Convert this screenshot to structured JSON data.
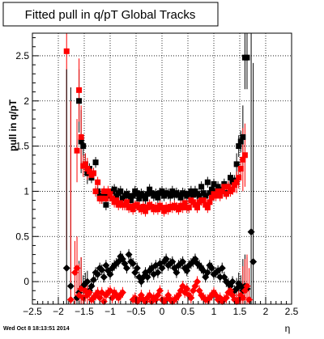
{
  "chart_data": {
    "type": "scatter",
    "title": "Fitted pull in q/pT  Global Tracks",
    "xlabel": "η",
    "ylabel": "pull in q/pT",
    "xlim": [
      -2.5,
      2.5
    ],
    "ylim": [
      -0.25,
      2.75
    ],
    "x_ticks": [
      -2.5,
      -2,
      -1.5,
      -1,
      -0.5,
      0,
      0.5,
      1,
      1.5,
      2,
      2.5
    ],
    "x_tick_labels": [
      "−2.5",
      "−2",
      "−1.5",
      "−1",
      "−0.5",
      "0",
      "0.5",
      "1",
      "1.5",
      "2",
      "2.5"
    ],
    "y_ticks": [
      0,
      0.5,
      1,
      1.5,
      2,
      2.5
    ],
    "y_tick_labels": [
      "0",
      "0.5",
      "1",
      "1.5",
      "2",
      "2.5"
    ],
    "grid": true,
    "timestamp": "Wed Oct  8 18:13:51 2014",
    "colors": {
      "black": "#000000",
      "red": "#ff0000"
    },
    "series": [
      {
        "marker": "square",
        "color": "#000000",
        "x": [
          -1.6,
          -1.56,
          -1.52,
          -1.48,
          -1.44,
          -1.4,
          -1.36,
          -1.32,
          -1.28,
          -1.24,
          -1.2,
          -1.16,
          -1.12,
          -1.08,
          -1.04,
          -1.0,
          -0.96,
          -0.92,
          -0.88,
          -0.84,
          -0.8,
          -0.76,
          -0.72,
          -0.68,
          -0.64,
          -0.6,
          -0.56,
          -0.52,
          -0.48,
          -0.44,
          -0.4,
          -0.36,
          -0.32,
          -0.28,
          -0.24,
          -0.2,
          -0.16,
          -0.12,
          -0.08,
          -0.04,
          0.0,
          0.04,
          0.08,
          0.12,
          0.16,
          0.2,
          0.24,
          0.28,
          0.32,
          0.36,
          0.4,
          0.44,
          0.48,
          0.52,
          0.56,
          0.6,
          0.64,
          0.68,
          0.72,
          0.76,
          0.8,
          0.84,
          0.88,
          0.92,
          0.96,
          1.0,
          1.04,
          1.08,
          1.12,
          1.16,
          1.2,
          1.24,
          1.28,
          1.32,
          1.36,
          1.4,
          1.44,
          1.48,
          1.52,
          1.56,
          1.6,
          1.64
        ],
        "y": [
          2.0,
          1.55,
          1.5,
          1.3,
          1.2,
          1.25,
          1.15,
          1.2,
          1.32,
          1.0,
          0.95,
          0.92,
          0.98,
          0.85,
          0.95,
          0.97,
          1.0,
          1.02,
          0.95,
          0.98,
          1.0,
          0.92,
          0.95,
          0.97,
          0.95,
          0.9,
          0.95,
          1.0,
          0.98,
          0.92,
          0.97,
          0.95,
          0.92,
          0.97,
          1.02,
          0.98,
          0.95,
          0.97,
          0.93,
          0.98,
          1.0,
          0.95,
          0.98,
          0.97,
          0.95,
          1.0,
          0.96,
          0.98,
          0.96,
          0.93,
          0.98,
          0.97,
          0.95,
          0.97,
          1.0,
          0.96,
          1.0,
          0.97,
          0.95,
          1.05,
          0.98,
          0.95,
          1.1,
          0.98,
          1.02,
          1.08,
          1.0,
          1.05,
          1.02,
          1.0,
          1.08,
          0.98,
          1.05,
          1.15,
          1.1,
          1.12,
          1.3,
          1.5,
          1.55,
          1.6,
          2.48,
          2.48
        ]
      },
      {
        "marker": "square",
        "color": "#ff0000",
        "x": [
          -1.84,
          -1.64,
          -1.6,
          -1.56,
          -1.52,
          -1.48,
          -1.44,
          -1.4,
          -1.36,
          -1.32,
          -1.28,
          -1.24,
          -1.2,
          -1.16,
          -1.12,
          -1.08,
          -1.04,
          -1.0,
          -0.96,
          -0.92,
          -0.88,
          -0.84,
          -0.8,
          -0.76,
          -0.72,
          -0.68,
          -0.64,
          -0.6,
          -0.56,
          -0.52,
          -0.48,
          -0.44,
          -0.4,
          -0.36,
          -0.32,
          -0.28,
          -0.24,
          -0.2,
          -0.16,
          -0.12,
          -0.08,
          -0.04,
          0.0,
          0.04,
          0.08,
          0.12,
          0.16,
          0.2,
          0.24,
          0.28,
          0.32,
          0.36,
          0.4,
          0.44,
          0.48,
          0.52,
          0.56,
          0.6,
          0.64,
          0.68,
          0.72,
          0.76,
          0.8,
          0.84,
          0.88,
          0.92,
          0.96,
          1.0,
          1.04,
          1.08,
          1.12,
          1.16,
          1.2,
          1.24,
          1.28,
          1.32,
          1.36,
          1.4,
          1.44,
          1.48,
          1.52,
          1.56,
          1.6
        ],
        "y": [
          2.55,
          1.45,
          2.12,
          1.6,
          1.28,
          1.3,
          1.25,
          1.22,
          1.18,
          1.2,
          1.0,
          1.1,
          0.92,
          0.92,
          1.0,
          0.92,
          1.0,
          0.97,
          0.92,
          0.88,
          0.9,
          0.85,
          0.87,
          0.85,
          0.85,
          0.88,
          0.82,
          0.83,
          0.8,
          0.84,
          0.85,
          0.82,
          0.8,
          0.83,
          0.78,
          0.82,
          0.85,
          0.83,
          0.8,
          0.82,
          0.8,
          0.84,
          0.82,
          0.78,
          0.82,
          0.8,
          0.83,
          0.82,
          0.84,
          0.82,
          0.8,
          0.84,
          0.82,
          0.87,
          0.82,
          0.82,
          0.9,
          0.88,
          0.85,
          0.82,
          0.88,
          0.9,
          0.9,
          0.85,
          0.82,
          0.88,
          0.93,
          0.97,
          0.95,
          1.0,
          0.95,
          1.0,
          1.05,
          0.97,
          1.05,
          1.0,
          1.02,
          1.07,
          1.1,
          1.15,
          1.25,
          1.35,
          1.4
        ]
      },
      {
        "marker": "diamond",
        "color": "#000000",
        "x": [
          -1.84,
          -1.76,
          -1.64,
          -1.6,
          -1.56,
          -1.52,
          -1.48,
          -1.44,
          -1.4,
          -1.36,
          -1.32,
          -1.28,
          -1.24,
          -1.2,
          -1.16,
          -1.12,
          -1.08,
          -1.04,
          -1.0,
          -0.96,
          -0.92,
          -0.88,
          -0.84,
          -0.8,
          -0.76,
          -0.72,
          -0.68,
          -0.64,
          -0.6,
          -0.56,
          -0.52,
          -0.48,
          -0.44,
          -0.4,
          -0.36,
          -0.32,
          -0.28,
          -0.24,
          -0.2,
          -0.16,
          -0.12,
          -0.08,
          -0.04,
          0.0,
          0.04,
          0.08,
          0.12,
          0.16,
          0.2,
          0.24,
          0.28,
          0.32,
          0.36,
          0.4,
          0.44,
          0.48,
          0.52,
          0.56,
          0.6,
          0.64,
          0.68,
          0.72,
          0.76,
          0.8,
          0.84,
          0.88,
          0.92,
          0.96,
          1.0,
          1.04,
          1.08,
          1.12,
          1.16,
          1.2,
          1.24,
          1.28,
          1.32,
          1.36,
          1.4,
          1.44,
          1.48,
          1.52,
          1.56,
          1.6,
          1.64,
          1.72,
          1.76
        ],
        "y": [
          0.15,
          -0.05,
          -0.18,
          -0.12,
          -0.08,
          -0.05,
          -0.02,
          0.0,
          -0.1,
          -0.05,
          0.02,
          0.1,
          0.08,
          0.15,
          0.13,
          0.05,
          0.18,
          0.12,
          0.08,
          0.15,
          0.18,
          0.2,
          0.22,
          0.28,
          0.25,
          0.2,
          0.15,
          0.3,
          0.22,
          0.2,
          0.1,
          0.15,
          0.05,
          0.0,
          0.05,
          0.1,
          0.05,
          0.12,
          0.15,
          0.08,
          0.18,
          0.1,
          0.2,
          0.15,
          0.22,
          0.25,
          0.18,
          0.2,
          0.22,
          0.15,
          0.1,
          0.18,
          0.2,
          0.22,
          0.15,
          0.12,
          0.18,
          0.2,
          0.22,
          0.25,
          0.2,
          0.18,
          0.15,
          0.12,
          0.05,
          0.1,
          0.18,
          0.15,
          0.08,
          0.1,
          0.12,
          0.05,
          0.15,
          0.05,
          0.0,
          -0.02,
          -0.05,
          0.0,
          -0.1,
          -0.08,
          -0.02,
          -0.05,
          -0.1,
          -0.05,
          -0.08,
          0.55,
          0.22
        ]
      },
      {
        "marker": "diamond",
        "color": "#ff0000",
        "x": [
          -1.76,
          -1.68,
          -1.64,
          -1.6,
          -1.56,
          -1.52,
          -1.48,
          -1.44,
          -1.4,
          -1.36,
          -1.32,
          -1.28,
          -1.24,
          -1.2,
          -1.16,
          -1.12,
          -1.08,
          -1.04,
          -1.0,
          -0.96,
          -0.92,
          -0.88,
          -0.84,
          -0.8,
          -0.76,
          -0.56,
          -0.52,
          -0.48,
          -0.44,
          -0.4,
          -0.36,
          -0.32,
          -0.28,
          -0.24,
          -0.2,
          -0.16,
          -0.12,
          -0.08,
          -0.04,
          0.0,
          0.04,
          0.08,
          0.12,
          0.16,
          0.2,
          0.24,
          0.28,
          0.32,
          0.36,
          0.4,
          0.44,
          0.48,
          0.52,
          0.56,
          0.6,
          0.64,
          0.68,
          0.72,
          0.76,
          0.8,
          0.84,
          0.88,
          0.92,
          0.96,
          1.0,
          1.04,
          1.08,
          1.12,
          1.16,
          1.2,
          1.24,
          1.28,
          1.32,
          1.36,
          1.4,
          1.44,
          1.48,
          1.52,
          1.56,
          1.6,
          1.64,
          1.68
        ],
        "y": [
          -0.2,
          0.1,
          0.15,
          -0.15,
          -0.08,
          -0.18,
          -0.1,
          -0.15,
          -0.12,
          -0.2,
          -0.18,
          -0.15,
          -0.12,
          -0.18,
          -0.12,
          -0.22,
          -0.15,
          -0.12,
          -0.1,
          -0.18,
          -0.12,
          -0.15,
          -0.18,
          -0.15,
          -0.12,
          -0.2,
          -0.18,
          -0.22,
          -0.2,
          -0.15,
          -0.2,
          -0.22,
          -0.18,
          -0.15,
          -0.22,
          -0.18,
          -0.2,
          -0.15,
          -0.1,
          -0.2,
          -0.22,
          -0.2,
          -0.15,
          -0.2,
          -0.22,
          -0.2,
          -0.18,
          -0.15,
          -0.1,
          -0.05,
          -0.12,
          -0.08,
          -0.15,
          -0.18,
          -0.1,
          -0.05,
          0.0,
          -0.1,
          -0.15,
          -0.18,
          -0.2,
          -0.2,
          -0.18,
          -0.15,
          -0.12,
          -0.15,
          -0.2,
          -0.18,
          -0.22,
          -0.2,
          -0.18,
          -0.12,
          -0.1,
          -0.15,
          -0.2,
          -0.22,
          -0.2,
          -0.15,
          -0.18,
          -0.1,
          -0.05,
          -0.2
        ]
      }
    ]
  }
}
